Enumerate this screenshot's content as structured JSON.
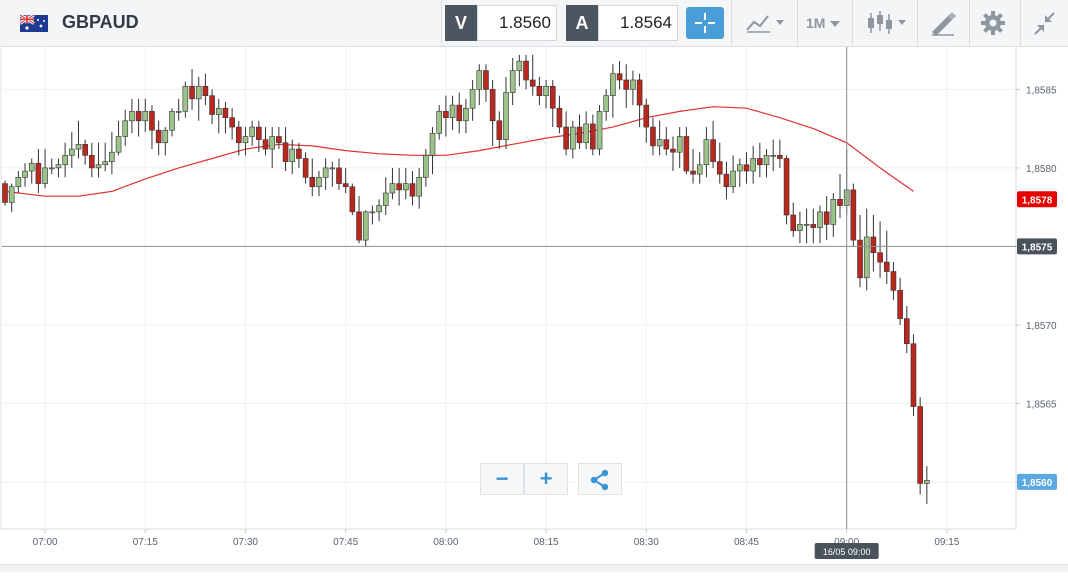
{
  "instrument": {
    "symbol": "GBPAUD",
    "flag_icon": "gb-au-flag-icon"
  },
  "quotes": {
    "sell_tag": "V",
    "sell_price": "1.8560",
    "buy_tag": "A",
    "buy_price": "1.8564"
  },
  "toolbar": {
    "crosshair_icon": "crosshair-icon",
    "indicator_icon": "line-chart-icon",
    "timeframe_label": "1M",
    "chart_type_icon": "candlestick-icon",
    "draw_icon": "pencil-ruler-icon",
    "settings_icon": "gear-icon",
    "collapse_icon": "collapse-arrows-icon"
  },
  "chart": {
    "y_ticks": [
      "1,8585",
      "1,8580",
      "1,8575",
      "1,8570",
      "1,8565",
      "1,8560"
    ],
    "x_ticks": [
      "07:00",
      "07:15",
      "07:30",
      "07:45",
      "08:00",
      "08:15",
      "08:30",
      "08:45",
      "09:00",
      "09:15"
    ],
    "crosshair_price_label": "1,8575",
    "ma_price_label": "1,8578",
    "last_price_label": "1,8560",
    "crosshair_time_label": "16/05 09:00",
    "colors": {
      "up": "#9cc48a",
      "down": "#b8281e",
      "ma": "#e03232",
      "last": "#5aa9e0",
      "ma_tag": "#e60000"
    }
  },
  "chart_data": {
    "type": "candlestick",
    "timeframe": "1M",
    "time_start": "06:54",
    "interval_minutes": 1,
    "candles": [
      [
        1.8579,
        1.85792,
        1.85776,
        1.85778
      ],
      [
        1.85778,
        1.8579,
        1.85772,
        1.85788
      ],
      [
        1.85788,
        1.85798,
        1.85784,
        1.85794
      ],
      [
        1.85794,
        1.85803,
        1.85788,
        1.85798
      ],
      [
        1.85798,
        1.85806,
        1.8579,
        1.85803
      ],
      [
        1.85803,
        1.85812,
        1.85784,
        1.8579
      ],
      [
        1.8579,
        1.85812,
        1.85787,
        1.858
      ],
      [
        1.858,
        1.85806,
        1.85796,
        1.858
      ],
      [
        1.858,
        1.85806,
        1.85794,
        1.85802
      ],
      [
        1.85802,
        1.85816,
        1.85794,
        1.85808
      ],
      [
        1.85808,
        1.85823,
        1.858,
        1.85812
      ],
      [
        1.85812,
        1.8583,
        1.85806,
        1.85815
      ],
      [
        1.85815,
        1.85818,
        1.85802,
        1.85808
      ],
      [
        1.85808,
        1.85816,
        1.85794,
        1.858
      ],
      [
        1.858,
        1.85816,
        1.85794,
        1.85802
      ],
      [
        1.85802,
        1.85816,
        1.85798,
        1.85804
      ],
      [
        1.85804,
        1.85823,
        1.85796,
        1.8581
      ],
      [
        1.8581,
        1.8583,
        1.85808,
        1.8582
      ],
      [
        1.8582,
        1.85837,
        1.85814,
        1.8583
      ],
      [
        1.8583,
        1.85844,
        1.85822,
        1.85836
      ],
      [
        1.85836,
        1.85844,
        1.8582,
        1.8583
      ],
      [
        1.8583,
        1.85844,
        1.85823,
        1.85836
      ],
      [
        1.85836,
        1.8584,
        1.85812,
        1.85824
      ],
      [
        1.85824,
        1.8583,
        1.85808,
        1.85816
      ],
      [
        1.85816,
        1.85826,
        1.85808,
        1.85824
      ],
      [
        1.85824,
        1.85838,
        1.8582,
        1.85836
      ],
      [
        1.85836,
        1.85844,
        1.8583,
        1.85836
      ],
      [
        1.85836,
        1.85855,
        1.85832,
        1.85852
      ],
      [
        1.85852,
        1.85863,
        1.85837,
        1.85844
      ],
      [
        1.85844,
        1.85858,
        1.8583,
        1.85852
      ],
      [
        1.85852,
        1.8586,
        1.8584,
        1.85846
      ],
      [
        1.85846,
        1.8585,
        1.85828,
        1.85834
      ],
      [
        1.85834,
        1.85844,
        1.85822,
        1.85838
      ],
      [
        1.85838,
        1.85842,
        1.85822,
        1.85832
      ],
      [
        1.85832,
        1.85838,
        1.85818,
        1.85826
      ],
      [
        1.85826,
        1.8583,
        1.85808,
        1.85816
      ],
      [
        1.85816,
        1.85826,
        1.85808,
        1.8582
      ],
      [
        1.8582,
        1.8583,
        1.85814,
        1.85826
      ],
      [
        1.85826,
        1.8583,
        1.8581,
        1.85818
      ],
      [
        1.85818,
        1.85826,
        1.85808,
        1.85812
      ],
      [
        1.85812,
        1.85826,
        1.858,
        1.8582
      ],
      [
        1.8582,
        1.85826,
        1.85812,
        1.85816
      ],
      [
        1.85816,
        1.85826,
        1.85798,
        1.85804
      ],
      [
        1.85804,
        1.85818,
        1.85796,
        1.85812
      ],
      [
        1.85812,
        1.85816,
        1.858,
        1.85806
      ],
      [
        1.85806,
        1.8581,
        1.8579,
        1.85794
      ],
      [
        1.85794,
        1.85806,
        1.85782,
        1.85788
      ],
      [
        1.85788,
        1.85798,
        1.85782,
        1.85794
      ],
      [
        1.85794,
        1.85806,
        1.85786,
        1.858
      ],
      [
        1.858,
        1.85804,
        1.85788,
        1.858
      ],
      [
        1.858,
        1.85806,
        1.85786,
        1.8579
      ],
      [
        1.8579,
        1.858,
        1.85784,
        1.85788
      ],
      [
        1.85788,
        1.8579,
        1.8577,
        1.85772
      ],
      [
        1.85772,
        1.85782,
        1.85752,
        1.85754
      ],
      [
        1.85754,
        1.85773,
        1.8575,
        1.85772
      ],
      [
        1.85772,
        1.85776,
        1.85764,
        1.85772
      ],
      [
        1.85772,
        1.8578,
        1.85766,
        1.85776
      ],
      [
        1.85776,
        1.85794,
        1.8577,
        1.85784
      ],
      [
        1.85784,
        1.858,
        1.8578,
        1.8579
      ],
      [
        1.8579,
        1.858,
        1.85776,
        1.85786
      ],
      [
        1.85786,
        1.858,
        1.8578,
        1.8579
      ],
      [
        1.8579,
        1.85798,
        1.85776,
        1.85782
      ],
      [
        1.85782,
        1.858,
        1.85774,
        1.85794
      ],
      [
        1.85794,
        1.85812,
        1.85788,
        1.85808
      ],
      [
        1.85808,
        1.85826,
        1.85796,
        1.85822
      ],
      [
        1.85822,
        1.8584,
        1.85818,
        1.85836
      ],
      [
        1.85836,
        1.85846,
        1.8582,
        1.85832
      ],
      [
        1.85832,
        1.85846,
        1.85824,
        1.8584
      ],
      [
        1.8584,
        1.85848,
        1.85822,
        1.8583
      ],
      [
        1.8583,
        1.85844,
        1.85822,
        1.85838
      ],
      [
        1.85838,
        1.85856,
        1.8583,
        1.8585
      ],
      [
        1.8585,
        1.85866,
        1.8584,
        1.85862
      ],
      [
        1.85862,
        1.85866,
        1.85842,
        1.8585
      ],
      [
        1.8585,
        1.85856,
        1.85814,
        1.8583
      ],
      [
        1.8583,
        1.85836,
        1.85812,
        1.85818
      ],
      [
        1.85818,
        1.85858,
        1.85812,
        1.85848
      ],
      [
        1.85848,
        1.8587,
        1.8584,
        1.85862
      ],
      [
        1.85862,
        1.85872,
        1.85852,
        1.85868
      ],
      [
        1.85868,
        1.85872,
        1.8585,
        1.85856
      ],
      [
        1.85856,
        1.85872,
        1.85846,
        1.85852
      ],
      [
        1.85852,
        1.85858,
        1.8584,
        1.85846
      ],
      [
        1.85846,
        1.85856,
        1.85838,
        1.85852
      ],
      [
        1.85852,
        1.85856,
        1.85826,
        1.85838
      ],
      [
        1.85838,
        1.85846,
        1.85822,
        1.85826
      ],
      [
        1.85826,
        1.85836,
        1.85808,
        1.85812
      ],
      [
        1.85812,
        1.8583,
        1.85806,
        1.85826
      ],
      [
        1.85826,
        1.85834,
        1.85812,
        1.85816
      ],
      [
        1.85816,
        1.85836,
        1.85812,
        1.85828
      ],
      [
        1.85828,
        1.85834,
        1.85808,
        1.85812
      ],
      [
        1.85812,
        1.8584,
        1.85808,
        1.85836
      ],
      [
        1.85836,
        1.8585,
        1.8583,
        1.85846
      ],
      [
        1.85846,
        1.85866,
        1.85832,
        1.8586
      ],
      [
        1.8586,
        1.85868,
        1.8585,
        1.85856
      ],
      [
        1.85856,
        1.85866,
        1.85838,
        1.8585
      ],
      [
        1.8585,
        1.85862,
        1.8584,
        1.85856
      ],
      [
        1.85856,
        1.8586,
        1.85826,
        1.8584
      ],
      [
        1.8584,
        1.85844,
        1.85816,
        1.85826
      ],
      [
        1.85826,
        1.85832,
        1.85808,
        1.85814
      ],
      [
        1.85814,
        1.8583,
        1.85808,
        1.85818
      ],
      [
        1.85818,
        1.85826,
        1.85808,
        1.85812
      ],
      [
        1.85812,
        1.8582,
        1.85798,
        1.8581
      ],
      [
        1.8581,
        1.85826,
        1.858,
        1.8582
      ],
      [
        1.8582,
        1.85826,
        1.85796,
        1.85798
      ],
      [
        1.85798,
        1.85812,
        1.8579,
        1.85796
      ],
      [
        1.85796,
        1.8581,
        1.8579,
        1.85802
      ],
      [
        1.85802,
        1.85826,
        1.85794,
        1.85818
      ],
      [
        1.85818,
        1.8583,
        1.858,
        1.85804
      ],
      [
        1.85804,
        1.85816,
        1.8579,
        1.85796
      ],
      [
        1.85796,
        1.85804,
        1.8578,
        1.85788
      ],
      [
        1.85788,
        1.85808,
        1.85784,
        1.85798
      ],
      [
        1.85798,
        1.85806,
        1.85788,
        1.85802
      ],
      [
        1.85802,
        1.8581,
        1.8579,
        1.85798
      ],
      [
        1.85798,
        1.85814,
        1.8579,
        1.85806
      ],
      [
        1.85806,
        1.85816,
        1.85794,
        1.85802
      ],
      [
        1.85802,
        1.85812,
        1.85794,
        1.85808
      ],
      [
        1.85808,
        1.85818,
        1.85798,
        1.85808
      ],
      [
        1.85808,
        1.85818,
        1.858,
        1.85806
      ],
      [
        1.85806,
        1.85808,
        1.85764,
        1.8577
      ],
      [
        1.8577,
        1.85778,
        1.85756,
        1.8576
      ],
      [
        1.8576,
        1.85772,
        1.85752,
        1.85764
      ],
      [
        1.85764,
        1.85774,
        1.85752,
        1.85764
      ],
      [
        1.85764,
        1.85774,
        1.85752,
        1.85762
      ],
      [
        1.85762,
        1.85776,
        1.85752,
        1.85772
      ],
      [
        1.85772,
        1.85782,
        1.85754,
        1.85764
      ],
      [
        1.85764,
        1.85784,
        1.85756,
        1.8578
      ],
      [
        1.8578,
        1.85796,
        1.85768,
        1.85776
      ],
      [
        1.85776,
        1.85812,
        1.8577,
        1.85786
      ],
      [
        1.85786,
        1.8579,
        1.8575,
        1.85754
      ],
      [
        1.85754,
        1.8577,
        1.85724,
        1.8573
      ],
      [
        1.8573,
        1.85774,
        1.85722,
        1.85756
      ],
      [
        1.85756,
        1.8577,
        1.85734,
        1.85746
      ],
      [
        1.85746,
        1.85766,
        1.8573,
        1.8574
      ],
      [
        1.8574,
        1.8576,
        1.85726,
        1.85734
      ],
      [
        1.85734,
        1.8574,
        1.85716,
        1.85722
      ],
      [
        1.85722,
        1.8573,
        1.857,
        1.85704
      ],
      [
        1.85704,
        1.85712,
        1.85682,
        1.85688
      ],
      [
        1.85688,
        1.85694,
        1.85642,
        1.85648
      ],
      [
        1.85648,
        1.85654,
        1.85592,
        1.85599
      ],
      [
        1.85599,
        1.8561,
        1.85586,
        1.85601
      ]
    ],
    "moving_average": {
      "x": [
        "06:54",
        "07:00",
        "07:05",
        "07:10",
        "07:15",
        "07:20",
        "07:25",
        "07:30",
        "07:35",
        "07:40",
        "07:45",
        "07:50",
        "07:55",
        "08:00",
        "08:05",
        "08:10",
        "08:15",
        "08:20",
        "08:25",
        "08:30",
        "08:35",
        "08:40",
        "08:45",
        "08:50",
        "08:55",
        "09:00",
        "09:05",
        "09:10"
      ],
      "y": [
        1.85785,
        1.85782,
        1.85782,
        1.85785,
        1.85793,
        1.858,
        1.85806,
        1.85812,
        1.85815,
        1.85814,
        1.85811,
        1.85809,
        1.85808,
        1.85808,
        1.85811,
        1.85815,
        1.85819,
        1.85822,
        1.85826,
        1.85832,
        1.85836,
        1.85839,
        1.85838,
        1.85832,
        1.85825,
        1.85816,
        1.858,
        1.85785
      ]
    },
    "ylim": [
      1.8557,
      1.85877
    ],
    "last_price": 1.856,
    "ma_last": 1.8578,
    "crosshair": {
      "time": "16/05 09:00",
      "price": 1.8575
    }
  },
  "zoom_controls": {
    "zoom_out_label": "−",
    "zoom_in_label": "+",
    "share_icon": "share-icon"
  }
}
